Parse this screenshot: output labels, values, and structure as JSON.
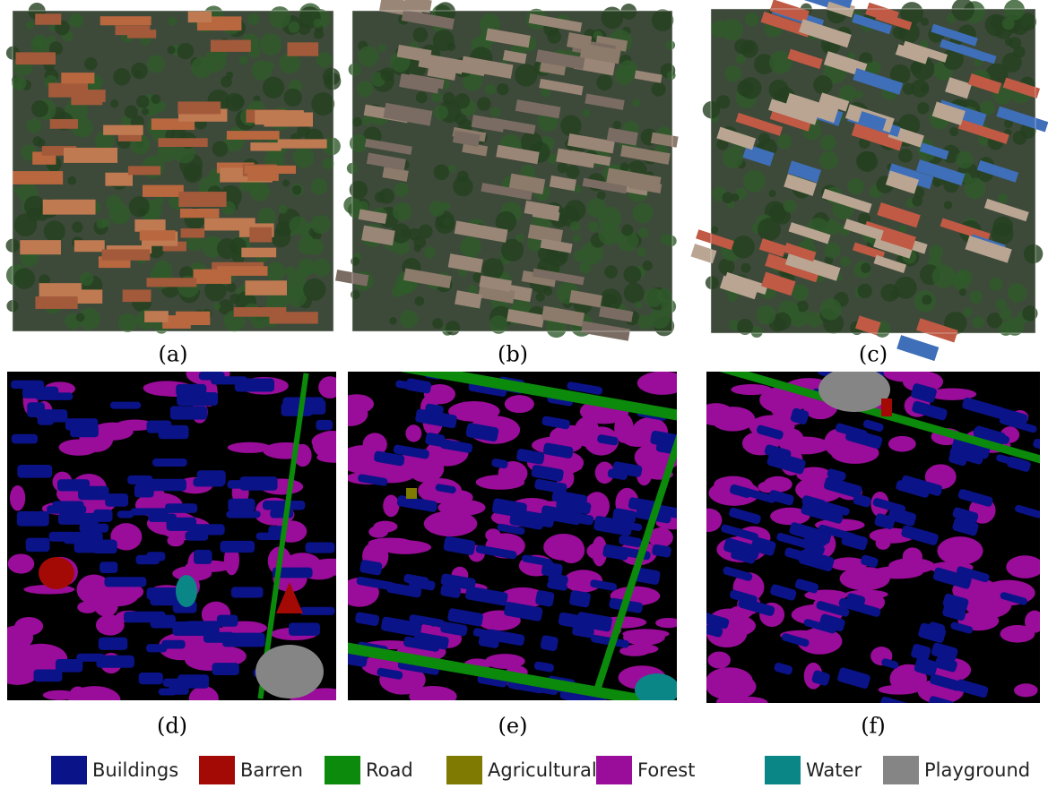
{
  "panels": [
    {
      "label": "(a)"
    },
    {
      "label": "(b)"
    },
    {
      "label": "(c)"
    },
    {
      "label": "(d)"
    },
    {
      "label": "(e)"
    },
    {
      "label": "(f)"
    }
  ],
  "legend": [
    {
      "name": "Buildings",
      "color": "#0b1388"
    },
    {
      "name": "Barren",
      "color": "#a30a05"
    },
    {
      "name": "Road",
      "color": "#0b8a0b"
    },
    {
      "name": "Agricultural",
      "color": "#7f7a02"
    },
    {
      "name": "Forest",
      "color": "#9a0c9a"
    },
    {
      "name": "Water",
      "color": "#0a8686"
    },
    {
      "name": "Playground",
      "color": "#858585"
    }
  ]
}
